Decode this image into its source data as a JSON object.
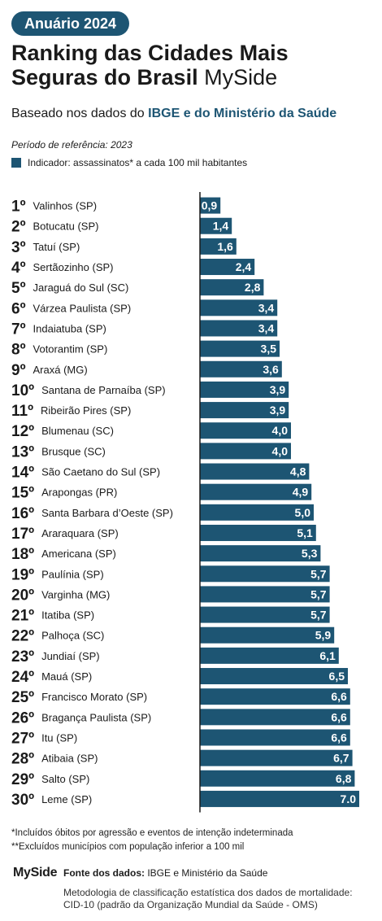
{
  "header": {
    "badge": "Anuário 2024",
    "title_line1": "Ranking das Cidades Mais",
    "title_line2": "Seguras do Brasil",
    "brand": "MySide",
    "subtitle_prefix": "Baseado nos dados do ",
    "subtitle_highlight": "IBGE e do Ministério da Saúde",
    "period": "Período de referência: 2023",
    "legend_label": "Indicador: assassinatos* a cada 100 mil habitantes"
  },
  "colors": {
    "accent": "#1d5573",
    "bar": "#1d5573",
    "axis": "#1a1a1a"
  },
  "chart_data": {
    "type": "bar",
    "orientation": "horizontal",
    "ranks": [
      "1º",
      "2º",
      "3º",
      "4º",
      "5º",
      "6º",
      "7º",
      "8º",
      "9º",
      "10º",
      "11º",
      "12º",
      "13º",
      "14º",
      "15º",
      "16º",
      "17º",
      "18º",
      "19º",
      "20º",
      "21º",
      "22º",
      "23º",
      "24º",
      "25º",
      "26º",
      "27º",
      "28º",
      "29º",
      "30º"
    ],
    "categories": [
      "Valinhos (SP)",
      "Botucatu (SP)",
      "Tatuí (SP)",
      "Sertãozinho (SP)",
      "Jaraguá do Sul (SC)",
      "Várzea Paulista (SP)",
      "Indaiatuba (SP)",
      "Votorantim (SP)",
      "Araxá (MG)",
      "Santana de Parnaíba (SP)",
      "Ribeirão Pires (SP)",
      "Blumenau (SC)",
      "Brusque (SC)",
      "São Caetano do Sul (SP)",
      "Arapongas (PR)",
      "Santa Barbara d’Oeste (SP)",
      "Araraquara (SP)",
      "Americana (SP)",
      "Paulínia (SP)",
      "Varginha (MG)",
      "Itatiba (SP)",
      "Palhoça (SC)",
      "Jundiaí (SP)",
      "Mauá  (SP)",
      "Francisco Morato (SP)",
      "Bragança Paulista (SP)",
      "Itu (SP)",
      "Atibaia (SP)",
      "Salto (SP)",
      "Leme (SP)"
    ],
    "values": [
      0.9,
      1.4,
      1.6,
      2.4,
      2.8,
      3.4,
      3.4,
      3.5,
      3.6,
      3.9,
      3.9,
      4.0,
      4.0,
      4.8,
      4.9,
      5.0,
      5.1,
      5.3,
      5.7,
      5.7,
      5.7,
      5.9,
      6.1,
      6.5,
      6.6,
      6.6,
      6.6,
      6.7,
      6.8,
      7.0
    ],
    "value_labels": [
      "0,9",
      "1,4",
      "1,6",
      "2,4",
      "2,8",
      "3,4",
      "3,4",
      "3,5",
      "3,6",
      "3,9",
      "3,9",
      "4,0",
      "4,0",
      "4,8",
      "4,9",
      "5,0",
      "5,1",
      "5,3",
      "5,7",
      "5,7",
      "5,7",
      "5,9",
      "6,1",
      "6,5",
      "6,6",
      "6,6",
      "6,6",
      "6,7",
      "6,8",
      "7.0"
    ],
    "xlim": [
      0,
      7.0
    ],
    "grid": false,
    "legend": "top-left"
  },
  "footnotes": {
    "note1": "*Incluídos óbitos por agressão e eventos de intenção indeterminada",
    "note2": "**Excluídos municípios com população inferior a 100 mil"
  },
  "footer": {
    "logo": "MySide",
    "source_label": "Fonte dos dados:",
    "source_value": " IBGE e Ministério da Saúde",
    "method_line1": "Metodologia de classificação estatística dos dados de mortalidade:",
    "method_line2": "CID-10 (padrão da Organização Mundial da Saúde - OMS)"
  }
}
